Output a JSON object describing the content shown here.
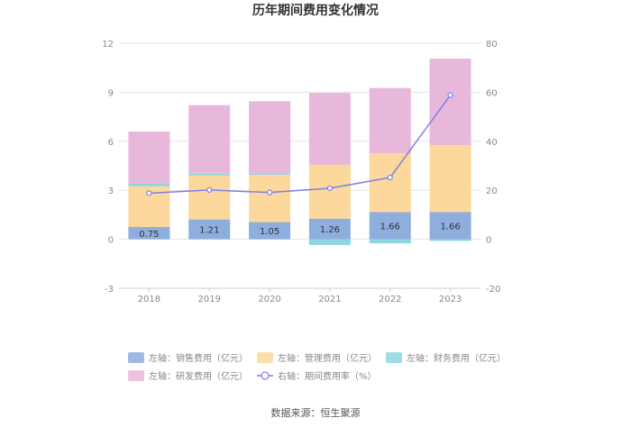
{
  "chart_data": {
    "type": "bar",
    "title": "历年期间费用变化情况",
    "categories": [
      "2018",
      "2019",
      "2020",
      "2021",
      "2022",
      "2023"
    ],
    "stacked": true,
    "left_axis": {
      "min": -3,
      "max": 12,
      "ticks": [
        "-3",
        "0",
        "3",
        "6",
        "9",
        "12"
      ]
    },
    "right_axis": {
      "min": -20,
      "max": 80,
      "ticks": [
        "-20",
        "0",
        "20",
        "40",
        "60",
        "80"
      ]
    },
    "series": [
      {
        "name": "左轴：销售费用（亿元）",
        "axis": "left",
        "color": "#8eaedd",
        "values": [
          0.75,
          1.21,
          1.05,
          1.26,
          1.66,
          1.66
        ],
        "labels": [
          "0.75",
          "1.21",
          "1.05",
          "1.26",
          "1.66",
          "1.66"
        ]
      },
      {
        "name": "左轴：管理费用（亿元）",
        "axis": "left",
        "color": "#fcd89c",
        "values": [
          2.5,
          2.7,
          2.9,
          3.3,
          3.6,
          4.1
        ]
      },
      {
        "name": "左轴：财务费用（亿元）",
        "axis": "left",
        "color": "#8ed6df",
        "values": [
          0.15,
          0.1,
          0.1,
          -0.35,
          -0.25,
          -0.1
        ]
      },
      {
        "name": "左轴：研发费用（亿元）",
        "axis": "left",
        "color": "#e8b8db",
        "values": [
          3.2,
          4.2,
          4.4,
          4.4,
          4.0,
          5.3
        ]
      },
      {
        "name": "右轴：期间费用率（%）",
        "axis": "right",
        "type": "line",
        "color": "#7f7fe6",
        "values": [
          18.8,
          20.1,
          19.1,
          20.8,
          25.2,
          58.8
        ]
      }
    ]
  },
  "source": "数据来源：恒生聚源"
}
